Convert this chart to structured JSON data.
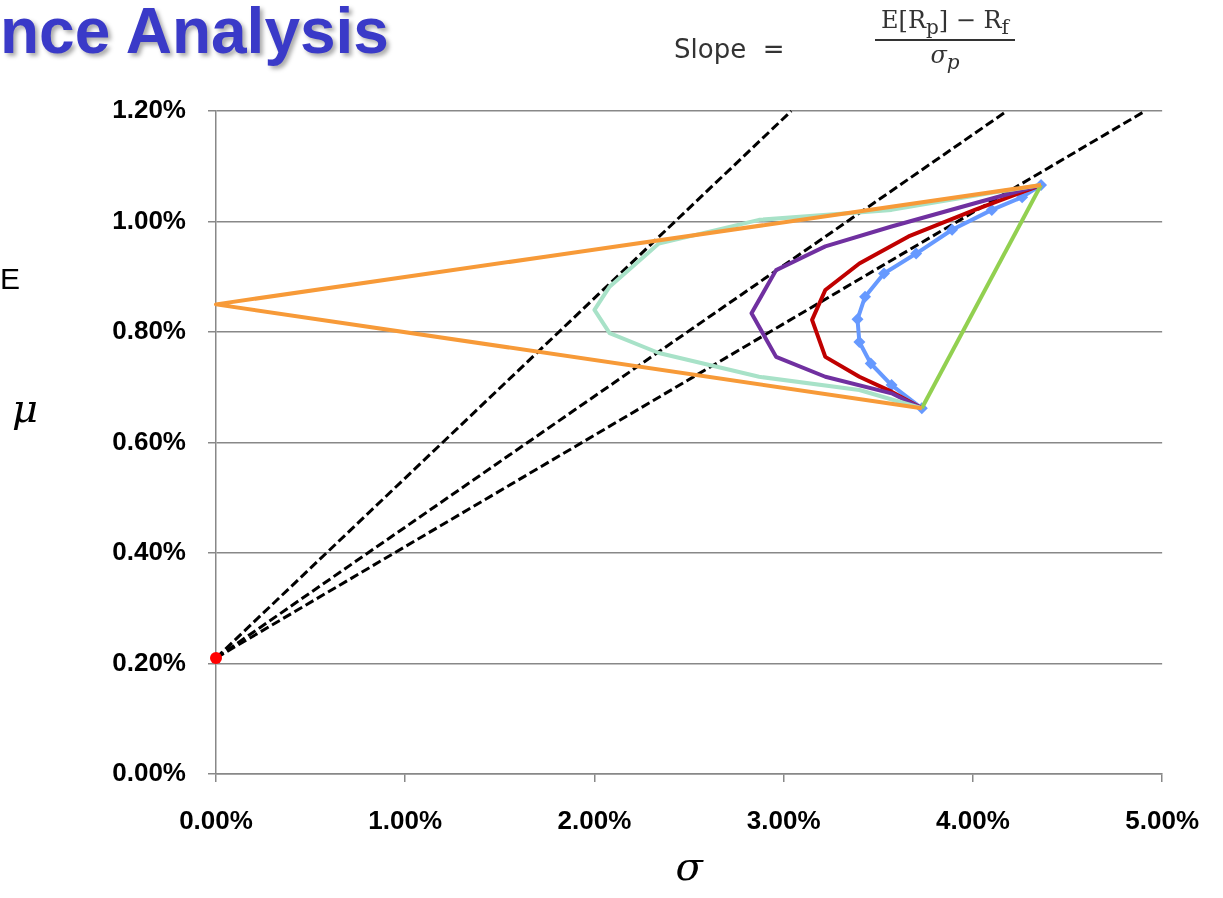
{
  "chart_data": {
    "type": "line",
    "title": "nce Analysis",
    "xlabel": "σ",
    "ylabel": "μ",
    "annotations": [
      "E",
      "Slope  =",
      "E[R$_{p}$] − R$_{f}$",
      "σ$_{p}$"
    ],
    "xlim": [
      0,
      5
    ],
    "ylim": [
      0,
      1.2
    ],
    "xticks": [
      {
        "value": 0,
        "label": "0.00%"
      },
      {
        "value": 1,
        "label": "1.00%"
      },
      {
        "value": 2,
        "label": "2.00%"
      },
      {
        "value": 3,
        "label": "3.00%"
      },
      {
        "value": 4,
        "label": "4.00%"
      },
      {
        "value": 5,
        "label": "5.00%"
      }
    ],
    "yticks": [
      {
        "value": 0,
        "label": "0.00%"
      },
      {
        "value": 0.2,
        "label": "0.20%"
      },
      {
        "value": 0.4,
        "label": "0.40%"
      },
      {
        "value": 0.6,
        "label": "0.60%"
      },
      {
        "value": 0.8,
        "label": "0.80%"
      },
      {
        "value": 1,
        "label": "1.00%"
      },
      {
        "value": 1.2,
        "label": "1.20%"
      }
    ],
    "grid": "y",
    "legend": false,
    "marker": "none",
    "line_style": "solid",
    "series": [
      {
        "color": "#f79a38",
        "x": [
          3.73,
          0,
          4.36
        ],
        "values": [
          0.662,
          0.85,
          1.066
        ]
      },
      {
        "color": "#92d050",
        "x": [
          3.73,
          4.36
        ],
        "values": [
          0.662,
          1.066
        ]
      },
      {
        "color": "#a8e2c8",
        "x": [
          3.73,
          3.4,
          2.87,
          2.34,
          2.08,
          2.0,
          2.08,
          2.34,
          2.87,
          3.57,
          4.1,
          4.36
        ],
        "values": [
          0.662,
          0.695,
          0.719,
          0.762,
          0.798,
          0.84,
          0.882,
          0.96,
          1.003,
          1.021,
          1.052,
          1.066
        ]
      },
      {
        "color": "#7030a0",
        "x": [
          3.73,
          3.57,
          3.22,
          2.96,
          2.83,
          2.96,
          3.22,
          3.57,
          4.01,
          4.36
        ],
        "values": [
          0.662,
          0.689,
          0.719,
          0.755,
          0.834,
          0.912,
          0.955,
          0.991,
          1.033,
          1.066
        ]
      },
      {
        "color": "#c00000",
        "x": [
          3.73,
          3.57,
          3.4,
          3.22,
          3.15,
          3.22,
          3.4,
          3.66,
          4.01,
          4.36
        ],
        "values": [
          0.662,
          0.692,
          0.719,
          0.755,
          0.822,
          0.876,
          0.924,
          0.973,
          1.021,
          1.066
        ]
      },
      {
        "color": "#6699ff",
        "marker": "diamond",
        "x": [
          3.73,
          3.57,
          3.46,
          3.4,
          3.39,
          3.43,
          3.53,
          3.7,
          3.89,
          4.1,
          4.26,
          4.36
        ],
        "values": [
          0.662,
          0.704,
          0.743,
          0.782,
          0.823,
          0.864,
          0.906,
          0.942,
          0.985,
          1.021,
          1.044,
          1.066
        ]
      },
      {
        "color": "#000000",
        "line_style": "dashed",
        "x": [
          0,
          3.04
        ],
        "values": [
          0.21,
          1.2
        ]
      },
      {
        "color": "#000000",
        "line_style": "dashed",
        "x": [
          0,
          4.18
        ],
        "values": [
          0.21,
          1.2
        ]
      },
      {
        "color": "#000000",
        "line_style": "dashed",
        "x": [
          0,
          4.91
        ],
        "values": [
          0.21,
          1.2
        ]
      },
      {
        "type": "scatter",
        "color": "#ff0000",
        "marker": "circle",
        "x": [
          0
        ],
        "values": [
          0.21
        ]
      }
    ]
  }
}
